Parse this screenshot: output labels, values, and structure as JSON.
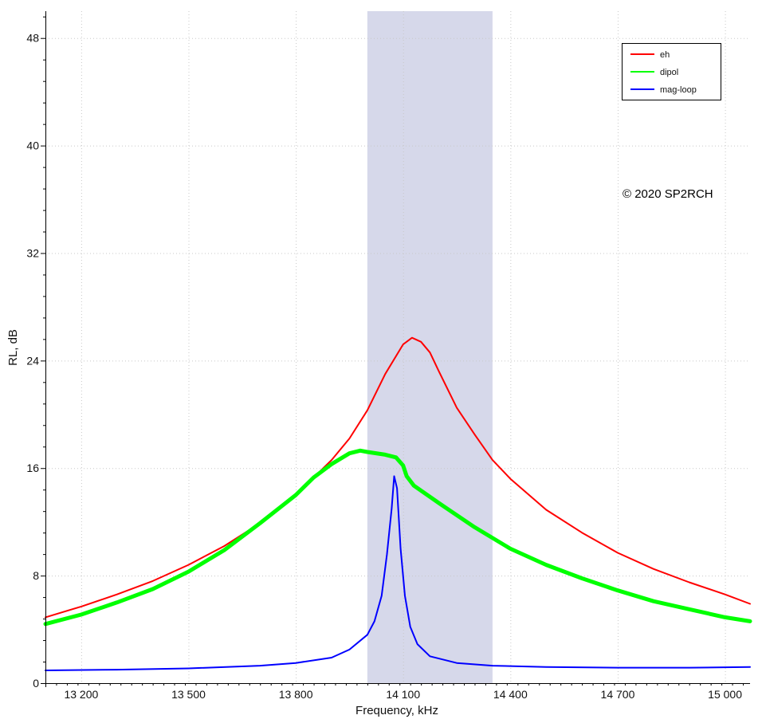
{
  "chart_data": {
    "type": "line",
    "title": "",
    "xlabel": "Frequency, kHz",
    "ylabel": "RL, dB",
    "xlim": [
      13100,
      15070
    ],
    "ylim": [
      0,
      50
    ],
    "x_ticks": [
      {
        "value": 13200,
        "label": "13 200"
      },
      {
        "value": 13500,
        "label": "13 500"
      },
      {
        "value": 13800,
        "label": "13 800"
      },
      {
        "value": 14100,
        "label": "14 100"
      },
      {
        "value": 14400,
        "label": "14 400"
      },
      {
        "value": 14700,
        "label": "14 700"
      },
      {
        "value": 15000,
        "label": "15 000"
      }
    ],
    "y_ticks": [
      {
        "value": 0,
        "label": "0"
      },
      {
        "value": 8,
        "label": "8"
      },
      {
        "value": 16,
        "label": "16"
      },
      {
        "value": 24,
        "label": "24"
      },
      {
        "value": 32,
        "label": "32"
      },
      {
        "value": 40,
        "label": "40"
      },
      {
        "value": 48,
        "label": "48"
      }
    ],
    "grid": true,
    "legend_position": "top-right",
    "highlight_band": {
      "x_start": 14000,
      "x_end": 14350,
      "color": "#d6d8ea"
    },
    "annotation": "© 2020 SP2RCH",
    "series": [
      {
        "name": "eh",
        "color": "#ff0000",
        "line_width": 2,
        "points": [
          [
            13100,
            4.9
          ],
          [
            13200,
            5.7
          ],
          [
            13300,
            6.6
          ],
          [
            13400,
            7.6
          ],
          [
            13500,
            8.8
          ],
          [
            13600,
            10.2
          ],
          [
            13700,
            11.9
          ],
          [
            13800,
            14.0
          ],
          [
            13900,
            16.6
          ],
          [
            13950,
            18.2
          ],
          [
            14000,
            20.3
          ],
          [
            14050,
            23.0
          ],
          [
            14100,
            25.2
          ],
          [
            14125,
            25.7
          ],
          [
            14150,
            25.4
          ],
          [
            14175,
            24.6
          ],
          [
            14200,
            23.2
          ],
          [
            14250,
            20.5
          ],
          [
            14300,
            18.5
          ],
          [
            14350,
            16.6
          ],
          [
            14400,
            15.2
          ],
          [
            14500,
            12.9
          ],
          [
            14600,
            11.2
          ],
          [
            14700,
            9.7
          ],
          [
            14800,
            8.5
          ],
          [
            14900,
            7.5
          ],
          [
            15000,
            6.6
          ],
          [
            15070,
            5.9
          ]
        ]
      },
      {
        "name": "dipol",
        "color": "#00ff00",
        "line_width": 5,
        "points": [
          [
            13100,
            4.4
          ],
          [
            13200,
            5.1
          ],
          [
            13300,
            6.0
          ],
          [
            13400,
            7.0
          ],
          [
            13500,
            8.3
          ],
          [
            13600,
            9.9
          ],
          [
            13700,
            11.9
          ],
          [
            13800,
            14.0
          ],
          [
            13850,
            15.3
          ],
          [
            13900,
            16.3
          ],
          [
            13950,
            17.1
          ],
          [
            13980,
            17.3
          ],
          [
            14000,
            17.2
          ],
          [
            14050,
            17.0
          ],
          [
            14080,
            16.8
          ],
          [
            14100,
            16.2
          ],
          [
            14110,
            15.4
          ],
          [
            14130,
            14.7
          ],
          [
            14200,
            13.4
          ],
          [
            14300,
            11.6
          ],
          [
            14400,
            10.0
          ],
          [
            14500,
            8.8
          ],
          [
            14600,
            7.8
          ],
          [
            14700,
            6.9
          ],
          [
            14800,
            6.1
          ],
          [
            14900,
            5.5
          ],
          [
            15000,
            4.9
          ],
          [
            15070,
            4.6
          ]
        ]
      },
      {
        "name": "mag-loop",
        "color": "#0000ff",
        "line_width": 2,
        "points": [
          [
            13100,
            0.95
          ],
          [
            13300,
            1.0
          ],
          [
            13500,
            1.1
          ],
          [
            13700,
            1.3
          ],
          [
            13800,
            1.5
          ],
          [
            13900,
            1.9
          ],
          [
            13950,
            2.5
          ],
          [
            14000,
            3.6
          ],
          [
            14020,
            4.6
          ],
          [
            14040,
            6.5
          ],
          [
            14055,
            9.6
          ],
          [
            14068,
            13.0
          ],
          [
            14075,
            15.4
          ],
          [
            14083,
            14.5
          ],
          [
            14093,
            10.0
          ],
          [
            14105,
            6.5
          ],
          [
            14120,
            4.2
          ],
          [
            14140,
            2.9
          ],
          [
            14175,
            2.0
          ],
          [
            14250,
            1.5
          ],
          [
            14350,
            1.3
          ],
          [
            14500,
            1.2
          ],
          [
            14700,
            1.15
          ],
          [
            14900,
            1.15
          ],
          [
            15070,
            1.2
          ]
        ]
      }
    ]
  }
}
